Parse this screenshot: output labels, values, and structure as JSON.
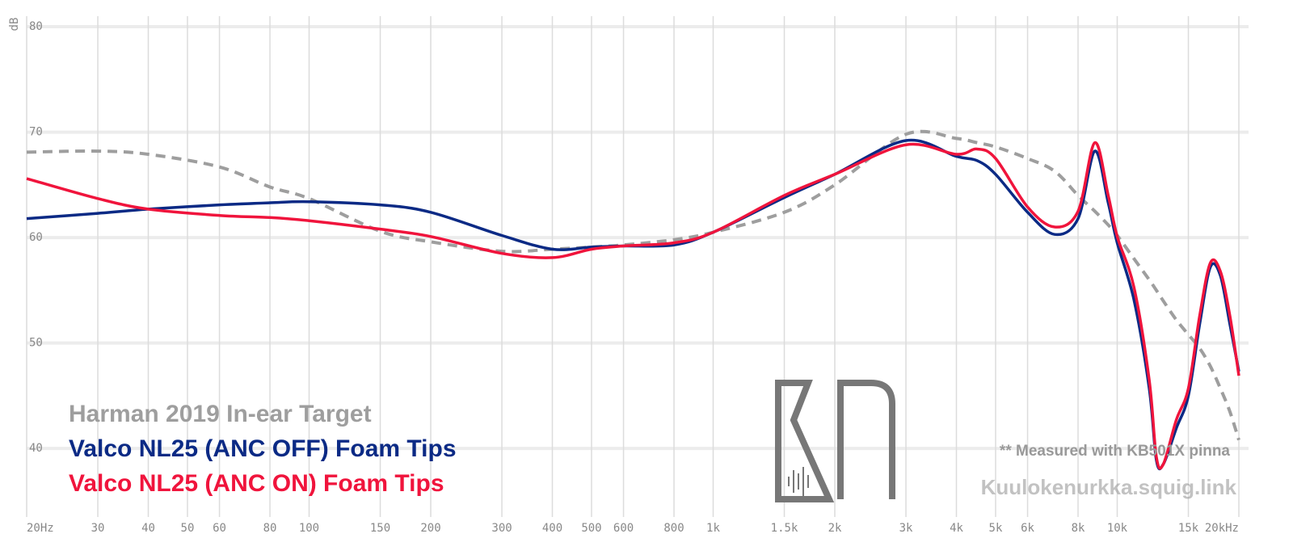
{
  "chart_data": {
    "type": "line",
    "y_label": "dB",
    "log_x": true,
    "grid": true,
    "legend_position": "lower left",
    "annotations": [
      "** Measured with KB501X pinna",
      "Kuulokenurkka.squig.link"
    ],
    "xlim": [
      20,
      20000
    ],
    "ylim": [
      33.5,
      81
    ],
    "xticks": [
      {
        "value": 20,
        "label": "20Hz"
      },
      30,
      40,
      50,
      60,
      80,
      100,
      150,
      200,
      300,
      400,
      500,
      600,
      800,
      {
        "value": 1000,
        "label": "1k"
      },
      {
        "value": 1500,
        "label": "1.5k"
      },
      {
        "value": 2000,
        "label": "2k"
      },
      {
        "value": 3000,
        "label": "3k"
      },
      {
        "value": 4000,
        "label": "4k"
      },
      {
        "value": 5000,
        "label": "5k"
      },
      {
        "value": 6000,
        "label": "6k"
      },
      {
        "value": 8000,
        "label": "8k"
      },
      {
        "value": 10000,
        "label": "10k"
      },
      {
        "value": 15000,
        "label": "15k"
      },
      {
        "value": 20000,
        "label": "20kHz"
      }
    ],
    "yticks": [
      40,
      50,
      60,
      70,
      80
    ],
    "x": [
      20,
      30,
      40,
      60,
      80,
      100,
      150,
      200,
      300,
      400,
      500,
      600,
      800,
      1000,
      1500,
      2000,
      3000,
      4000,
      4500,
      5000,
      6000,
      7000,
      8000,
      8800,
      9500,
      10000,
      11000,
      12000,
      12500,
      13000,
      14000,
      15000,
      16000,
      17000,
      18000,
      19000,
      20000
    ],
    "series": [
      {
        "name": "Harman 2019 In-ear Target",
        "color": "#9e9e9e",
        "line_style": "dashed",
        "values": [
          68.1,
          68.2,
          67.9,
          66.7,
          64.8,
          63.7,
          60.6,
          59.6,
          58.7,
          58.9,
          59.1,
          59.3,
          59.8,
          60.5,
          62.4,
          65.0,
          69.8,
          69.4,
          69.0,
          68.6,
          67.5,
          66.3,
          64.0,
          62.5,
          61.2,
          60.2,
          58.0,
          56.0,
          55.0,
          54.0,
          52.2,
          50.8,
          49.5,
          47.8,
          45.7,
          43.5,
          40.8
        ]
      },
      {
        "name": "Valco NL25 (ANC OFF) Foam Tips",
        "color": "#0b2a85",
        "line_style": "solid",
        "values": [
          61.8,
          62.3,
          62.7,
          63.1,
          63.3,
          63.4,
          63.1,
          62.4,
          60.2,
          58.9,
          59.1,
          59.2,
          59.3,
          60.5,
          63.8,
          66.0,
          69.2,
          67.7,
          67.3,
          66.0,
          62.4,
          60.3,
          61.8,
          68.2,
          63.3,
          59.5,
          54.1,
          45.7,
          38.9,
          38.5,
          41.9,
          45.0,
          51.8,
          57.2,
          56.4,
          51.8,
          47.3
        ]
      },
      {
        "name": "Valco NL25 (ANC ON) Foam Tips",
        "color": "#f0143c",
        "line_style": "solid",
        "values": [
          65.6,
          63.7,
          62.7,
          62.1,
          61.9,
          61.6,
          60.8,
          60.1,
          58.5,
          58.1,
          58.9,
          59.2,
          59.5,
          60.5,
          64.0,
          66.0,
          68.8,
          67.9,
          68.4,
          67.5,
          62.9,
          61.0,
          62.5,
          69.0,
          64.0,
          60.1,
          55.3,
          46.5,
          39.2,
          38.5,
          42.7,
          45.7,
          52.6,
          57.6,
          56.8,
          52.6,
          46.9
        ]
      }
    ]
  }
}
